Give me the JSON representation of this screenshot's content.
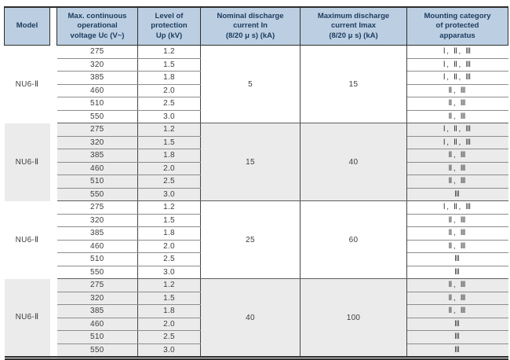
{
  "colors": {
    "header_bg": "#bccfe2",
    "header_text": "#1c3a5e",
    "shaded_block_bg": "#ebebeb",
    "body_text": "#3d3d3d",
    "border_dark": "#2d2d2d",
    "border_row": "#8d8d8d"
  },
  "table": {
    "headers": {
      "model": "Model",
      "voltage": "Max. continuous\noperational\nvoltage Uc (V~)",
      "protection": "Level of\nprotection\nUp (kV)",
      "nominal": "Nominal discharge\ncurrent In\n(8/20 μ s) (kA)",
      "maximum": "Maximum discharge\ncurrent Imax\n(8/20 μ s) (kA)",
      "mounting": "Mounting category\nof protected\napparatus"
    },
    "blocks": [
      {
        "model": "NU6-Ⅱ",
        "shaded": false,
        "nominal_current": "5",
        "max_current": "15",
        "rows": [
          {
            "voltage": "275",
            "protection": "1.2",
            "category": "Ⅰ, Ⅱ, Ⅲ"
          },
          {
            "voltage": "320",
            "protection": "1.5",
            "category": "Ⅰ, Ⅱ, Ⅲ"
          },
          {
            "voltage": "385",
            "protection": "1.8",
            "category": "Ⅰ, Ⅱ, Ⅲ"
          },
          {
            "voltage": "460",
            "protection": "2.0",
            "category": "Ⅱ, Ⅲ"
          },
          {
            "voltage": "510",
            "protection": "2.5",
            "category": "Ⅱ, Ⅲ"
          },
          {
            "voltage": "550",
            "protection": "3.0",
            "category": "Ⅱ, Ⅲ"
          }
        ]
      },
      {
        "model": "NU6-Ⅱ",
        "shaded": true,
        "nominal_current": "15",
        "max_current": "40",
        "rows": [
          {
            "voltage": "275",
            "protection": "1.2",
            "category": "Ⅰ, Ⅱ, Ⅲ"
          },
          {
            "voltage": "320",
            "protection": "1.5",
            "category": "Ⅰ, Ⅱ, Ⅲ"
          },
          {
            "voltage": "385",
            "protection": "1.8",
            "category": "Ⅱ, Ⅲ"
          },
          {
            "voltage": "460",
            "protection": "2.0",
            "category": "Ⅱ, Ⅲ"
          },
          {
            "voltage": "510",
            "protection": "2.5",
            "category": "Ⅱ, Ⅲ"
          },
          {
            "voltage": "550",
            "protection": "3.0",
            "category": "Ⅲ"
          }
        ]
      },
      {
        "model": "NU6-Ⅱ",
        "shaded": false,
        "nominal_current": "25",
        "max_current": "60",
        "rows": [
          {
            "voltage": "275",
            "protection": "1.2",
            "category": "Ⅰ, Ⅱ, Ⅲ"
          },
          {
            "voltage": "320",
            "protection": "1.5",
            "category": "Ⅱ, Ⅲ"
          },
          {
            "voltage": "385",
            "protection": "1.8",
            "category": "Ⅱ, Ⅲ"
          },
          {
            "voltage": "460",
            "protection": "2.0",
            "category": "Ⅱ, Ⅲ"
          },
          {
            "voltage": "510",
            "protection": "2.5",
            "category": "Ⅲ"
          },
          {
            "voltage": "550",
            "protection": "3.0",
            "category": "Ⅲ"
          }
        ]
      },
      {
        "model": "NU6-Ⅱ",
        "shaded": true,
        "nominal_current": "40",
        "max_current": "100",
        "rows": [
          {
            "voltage": "275",
            "protection": "1.2",
            "category": "Ⅱ, Ⅲ"
          },
          {
            "voltage": "320",
            "protection": "1.5",
            "category": "Ⅱ, Ⅲ"
          },
          {
            "voltage": "385",
            "protection": "1.8",
            "category": "Ⅱ, Ⅲ"
          },
          {
            "voltage": "460",
            "protection": "2.0",
            "category": "Ⅲ"
          },
          {
            "voltage": "510",
            "protection": "2.5",
            "category": "Ⅲ"
          },
          {
            "voltage": "550",
            "protection": "3.0",
            "category": "Ⅲ"
          }
        ]
      }
    ]
  }
}
